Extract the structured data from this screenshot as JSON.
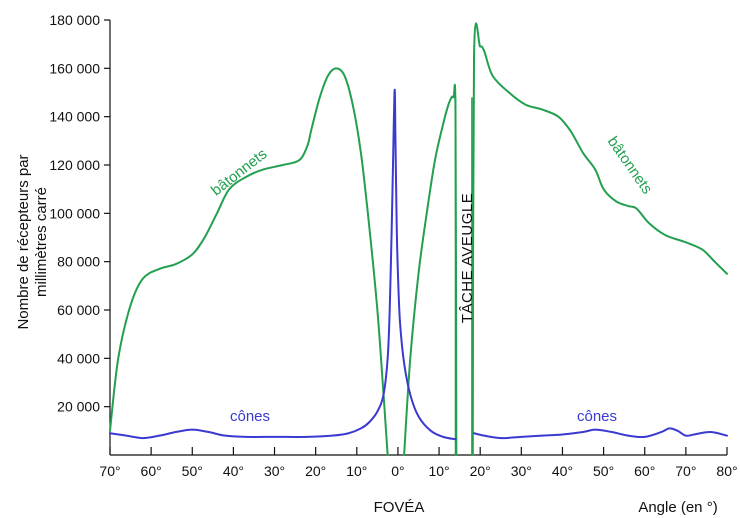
{
  "chart_data": {
    "type": "line",
    "ylabel": "Nombre de récepteurs par millimètres carré",
    "xlabel": "Angle (en °)",
    "x_center_label": "FOVÉA",
    "blind_spot_label": "TÂCHE AVEUGLE",
    "blind_spot_range": [
      14,
      18
    ],
    "x_ticks": [
      -70,
      -60,
      -50,
      -40,
      -30,
      -20,
      -10,
      0,
      10,
      20,
      30,
      40,
      50,
      60,
      70,
      80
    ],
    "x_tick_labels": [
      "70°",
      "60°",
      "50°",
      "40°",
      "30°",
      "20°",
      "10°",
      "0°",
      "10°",
      "20°",
      "30°",
      "40°",
      "50°",
      "60°",
      "70°",
      "80°"
    ],
    "y_ticks": [
      20000,
      40000,
      60000,
      80000,
      100000,
      120000,
      140000,
      160000,
      180000
    ],
    "y_tick_labels": [
      "20 000",
      "40 000",
      "60 000",
      "80 000",
      "100 000",
      "120 000",
      "140 000",
      "160 000",
      "180 000"
    ],
    "xlim": [
      -70,
      80
    ],
    "ylim": [
      0,
      180000
    ],
    "colors": {
      "rods": "#22a050",
      "cones": "#3a3ad0",
      "axis": "#111111"
    },
    "series": [
      {
        "name": "bâtonnets",
        "label_left": "bâtonnets",
        "label_right": "bâtonnets",
        "segments": [
          [
            [
              -70,
              10000
            ],
            [
              -68,
              40000
            ],
            [
              -65,
              62000
            ],
            [
              -62,
              73000
            ],
            [
              -58,
              77000
            ],
            [
              -54,
              79000
            ],
            [
              -50,
              83000
            ],
            [
              -47,
              90000
            ],
            [
              -44,
              100000
            ],
            [
              -41,
              110000
            ],
            [
              -37,
              115000
            ],
            [
              -33,
              118000
            ],
            [
              -28,
              120000
            ],
            [
              -24,
              122000
            ],
            [
              -22,
              128000
            ],
            [
              -21,
              135000
            ],
            [
              -19,
              148000
            ],
            [
              -17,
              157000
            ],
            [
              -15,
              160000
            ],
            [
              -13,
              157000
            ],
            [
              -11,
              145000
            ],
            [
              -9,
              125000
            ],
            [
              -7,
              95000
            ],
            [
              -5,
              60000
            ],
            [
              -3.5,
              25000
            ],
            [
              -2.5,
              0
            ]
          ],
          [
            [
              1.5,
              0
            ],
            [
              3,
              40000
            ],
            [
              5,
              75000
            ],
            [
              7,
              100000
            ],
            [
              9,
              122000
            ],
            [
              11,
              137000
            ],
            [
              12.5,
              146000
            ],
            [
              13.5,
              148000
            ],
            [
              14,
              140000
            ],
            [
              14.2,
              0
            ]
          ],
          [
            [
              18.2,
              0
            ],
            [
              18.5,
              165000
            ],
            [
              20,
              169000
            ],
            [
              21,
              167000
            ],
            [
              23,
              157000
            ],
            [
              27,
              150000
            ],
            [
              31,
              145000
            ],
            [
              35,
              143000
            ],
            [
              39,
              140000
            ],
            [
              42,
              134000
            ],
            [
              45,
              125000
            ],
            [
              48,
              118000
            ],
            [
              50,
              110000
            ],
            [
              53,
              105000
            ],
            [
              56,
              103000
            ],
            [
              58,
              102000
            ],
            [
              61,
              96000
            ],
            [
              65,
              91000
            ],
            [
              70,
              88000
            ],
            [
              74,
              85000
            ],
            [
              77,
              80000
            ],
            [
              80,
              75000
            ]
          ]
        ]
      },
      {
        "name": "cônes",
        "label_left": "cônes",
        "label_right": "cônes",
        "segments": [
          [
            [
              -70,
              9000
            ],
            [
              -66,
              8000
            ],
            [
              -62,
              7000
            ],
            [
              -58,
              8000
            ],
            [
              -54,
              9500
            ],
            [
              -50,
              10500
            ],
            [
              -46,
              9500
            ],
            [
              -42,
              8000
            ],
            [
              -37,
              7500
            ],
            [
              -30,
              7500
            ],
            [
              -22,
              7500
            ],
            [
              -16,
              8000
            ],
            [
              -12,
              9000
            ],
            [
              -9,
              11000
            ],
            [
              -7,
              13500
            ],
            [
              -5,
              18000
            ],
            [
              -3.5,
              25000
            ],
            [
              -2.5,
              40000
            ],
            [
              -2,
              60000
            ],
            [
              -1.5,
              95000
            ],
            [
              -1.2,
              120000
            ],
            [
              -0.8,
              151000
            ],
            [
              -0.6,
              130000
            ],
            [
              -0.3,
              95000
            ],
            [
              0,
              75000
            ],
            [
              0.5,
              55000
            ],
            [
              1.5,
              38000
            ],
            [
              3,
              25000
            ],
            [
              5,
              16000
            ],
            [
              8,
              10000
            ],
            [
              11,
              7500
            ],
            [
              14,
              6500
            ]
          ],
          [
            [
              18.5,
              9000
            ],
            [
              21,
              8000
            ],
            [
              25,
              7000
            ],
            [
              30,
              7500
            ],
            [
              35,
              8000
            ],
            [
              40,
              8500
            ],
            [
              45,
              9500
            ],
            [
              48,
              10500
            ],
            [
              52,
              9500
            ],
            [
              56,
              8000
            ],
            [
              60,
              7500
            ],
            [
              64,
              9500
            ],
            [
              66,
              11000
            ],
            [
              68,
              10000
            ],
            [
              70,
              8000
            ],
            [
              72,
              8500
            ],
            [
              76,
              9500
            ],
            [
              80,
              8000
            ]
          ]
        ]
      }
    ]
  }
}
